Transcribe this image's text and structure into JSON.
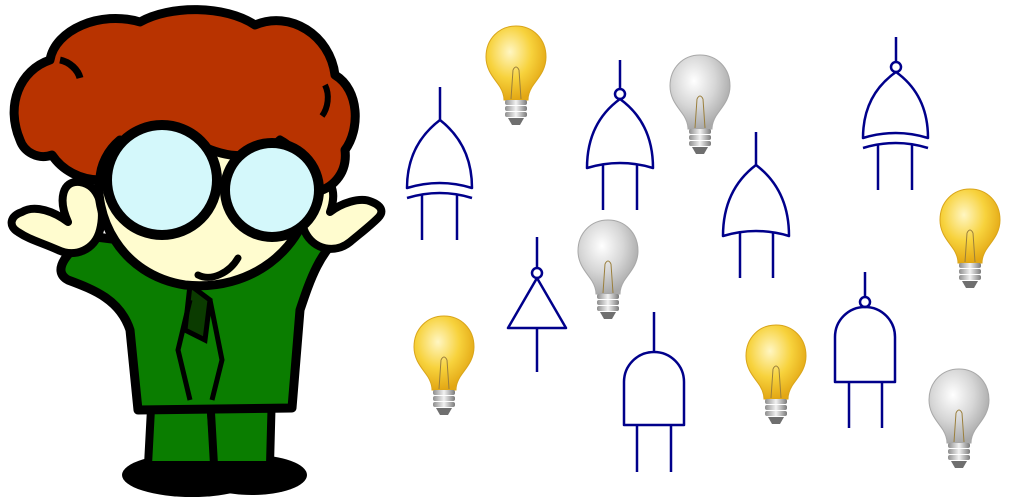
{
  "scene": {
    "colors": {
      "hair": "#b83300",
      "skin": "#fffccf",
      "suit": "#0a7d00",
      "lens": "#d4f8fb",
      "outline": "#000000",
      "gate": "#00008b",
      "bulb_on": "#f7d23c",
      "bulb_off": "#cfcfcf"
    },
    "bulbs": [
      {
        "name": "bulb-on-icon",
        "state": "on"
      },
      {
        "name": "bulb-off-icon",
        "state": "off"
      },
      {
        "name": "bulb-off-icon",
        "state": "off"
      },
      {
        "name": "bulb-on-icon",
        "state": "on"
      },
      {
        "name": "bulb-on-icon",
        "state": "on"
      },
      {
        "name": "bulb-on-icon",
        "state": "on"
      },
      {
        "name": "bulb-off-icon",
        "state": "off"
      }
    ],
    "gates": [
      {
        "name": "xor-gate-icon",
        "type": "xor"
      },
      {
        "name": "nor-gate-icon",
        "type": "nor"
      },
      {
        "name": "or-gate-icon",
        "type": "or"
      },
      {
        "name": "xnor-gate-icon",
        "type": "xnor"
      },
      {
        "name": "not-gate-icon",
        "type": "not"
      },
      {
        "name": "and-gate-icon",
        "type": "and"
      },
      {
        "name": "nand-gate-icon",
        "type": "nand"
      }
    ]
  }
}
